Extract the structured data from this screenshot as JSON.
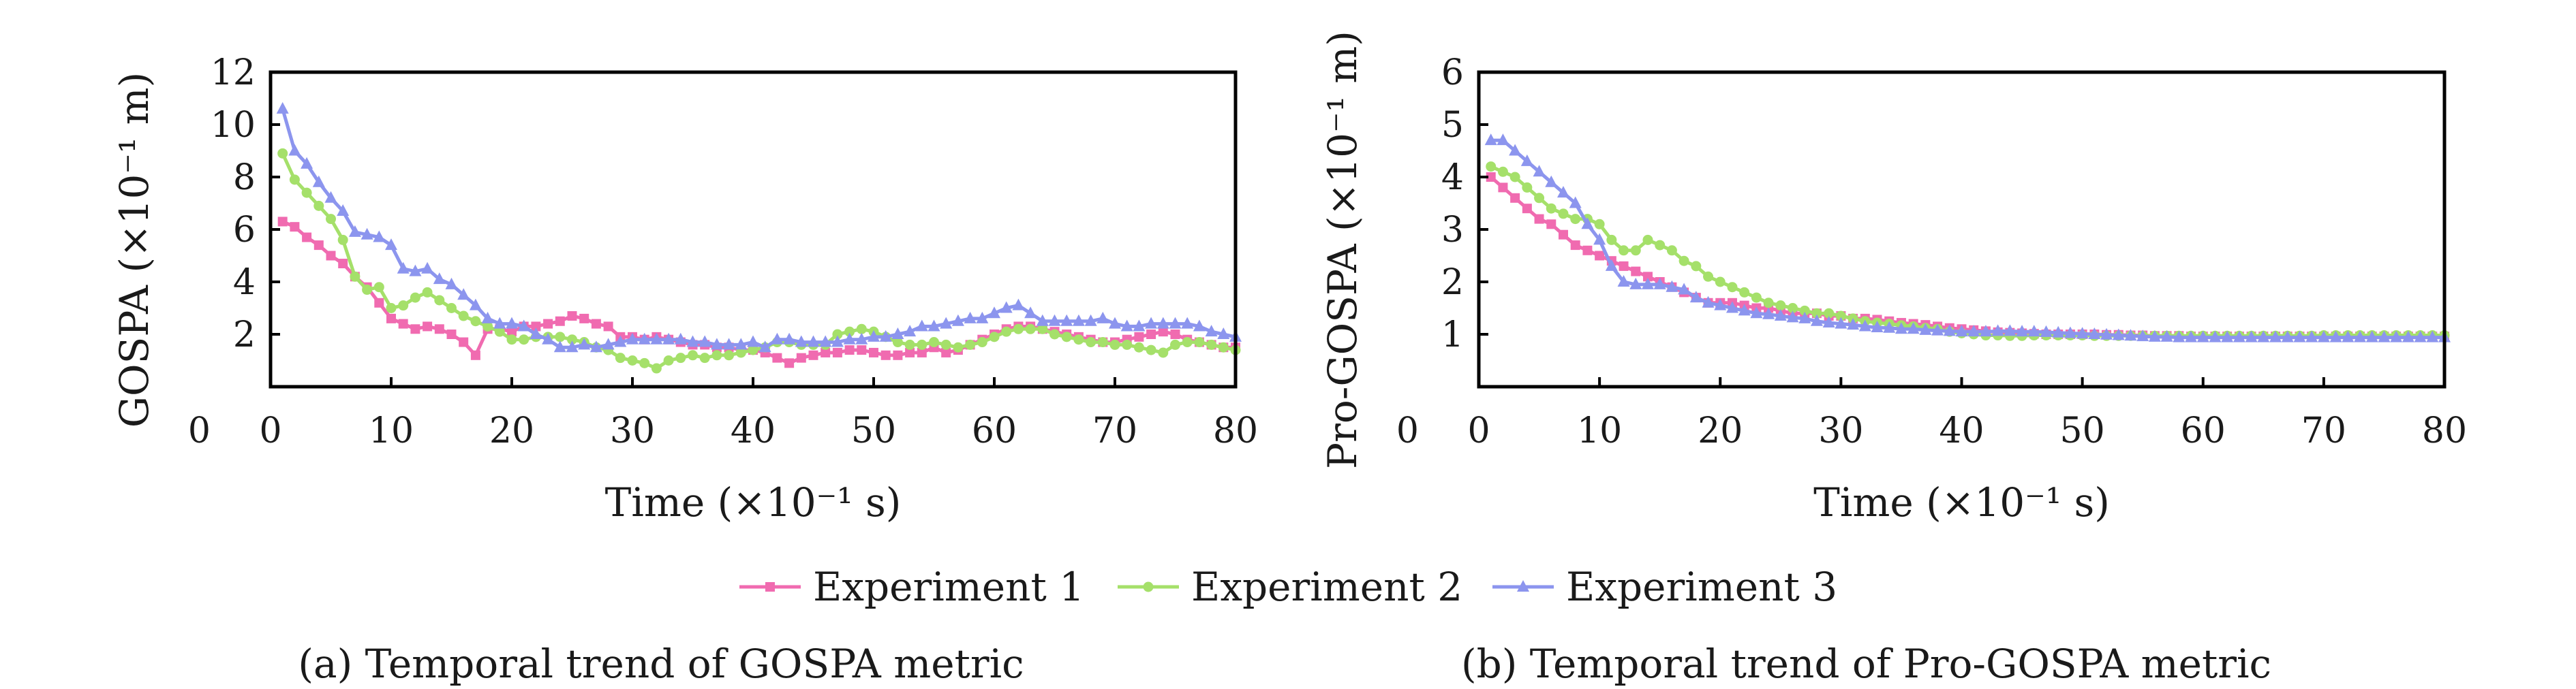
{
  "chart_data": [
    {
      "type": "line",
      "caption": "(a) Temporal trend of GOSPA metric",
      "xlabel": "Time (×10⁻¹ s)",
      "ylabel": "GOSPA (×10⁻¹ m)",
      "xlim": [
        0,
        80
      ],
      "ylim": [
        0,
        12
      ],
      "xticks": [
        0,
        10,
        20,
        30,
        40,
        50,
        60,
        70,
        80
      ],
      "yticks": [
        2,
        4,
        6,
        8,
        10,
        12
      ],
      "x": [
        1,
        2,
        3,
        4,
        5,
        6,
        7,
        8,
        9,
        10,
        11,
        12,
        13,
        14,
        15,
        16,
        17,
        18,
        19,
        20,
        21,
        22,
        23,
        24,
        25,
        26,
        27,
        28,
        29,
        30,
        31,
        32,
        33,
        34,
        35,
        36,
        37,
        38,
        39,
        40,
        41,
        42,
        43,
        44,
        45,
        46,
        47,
        48,
        49,
        50,
        51,
        52,
        53,
        54,
        55,
        56,
        57,
        58,
        59,
        60,
        61,
        62,
        63,
        64,
        65,
        66,
        67,
        68,
        69,
        70,
        71,
        72,
        73,
        74,
        75,
        76,
        77,
        78,
        79,
        80
      ],
      "series": [
        {
          "name": "Experiment 1",
          "values": [
            6.3,
            6.1,
            5.7,
            5.4,
            5.0,
            4.7,
            4.2,
            3.8,
            3.2,
            2.6,
            2.4,
            2.2,
            2.3,
            2.2,
            2.0,
            1.7,
            1.2,
            2.2,
            2.2,
            2.1,
            2.3,
            2.3,
            2.4,
            2.5,
            2.7,
            2.6,
            2.4,
            2.3,
            1.9,
            1.9,
            1.8,
            1.9,
            1.8,
            1.7,
            1.6,
            1.6,
            1.5,
            1.5,
            1.4,
            1.4,
            1.3,
            1.1,
            0.9,
            1.1,
            1.2,
            1.3,
            1.3,
            1.4,
            1.4,
            1.3,
            1.2,
            1.2,
            1.3,
            1.3,
            1.5,
            1.3,
            1.4,
            1.6,
            1.8,
            2.0,
            2.2,
            2.3,
            2.3,
            2.2,
            2.1,
            2.0,
            1.9,
            1.8,
            1.7,
            1.7,
            1.8,
            1.9,
            2.0,
            2.1,
            2.0,
            1.8,
            1.7,
            1.6,
            1.5,
            1.5
          ]
        },
        {
          "name": "Experiment 2",
          "values": [
            8.9,
            7.9,
            7.4,
            6.9,
            6.4,
            5.6,
            4.2,
            3.7,
            3.8,
            3.0,
            3.1,
            3.4,
            3.6,
            3.3,
            3.0,
            2.7,
            2.5,
            2.3,
            2.1,
            1.8,
            1.8,
            1.9,
            1.9,
            1.9,
            1.8,
            1.7,
            1.5,
            1.4,
            1.1,
            1.0,
            0.9,
            0.7,
            1.0,
            1.1,
            1.2,
            1.1,
            1.2,
            1.2,
            1.3,
            1.4,
            1.5,
            1.7,
            1.7,
            1.6,
            1.6,
            1.6,
            2.0,
            2.1,
            2.2,
            2.1,
            1.9,
            1.7,
            1.6,
            1.6,
            1.7,
            1.6,
            1.5,
            1.6,
            1.7,
            1.9,
            2.1,
            2.2,
            2.2,
            2.2,
            2.0,
            1.9,
            1.8,
            1.7,
            1.7,
            1.6,
            1.6,
            1.5,
            1.4,
            1.3,
            1.6,
            1.7,
            1.7,
            1.6,
            1.5,
            1.4
          ]
        },
        {
          "name": "Experiment 3",
          "values": [
            10.6,
            9.0,
            8.5,
            7.8,
            7.2,
            6.7,
            5.9,
            5.8,
            5.7,
            5.4,
            4.5,
            4.4,
            4.5,
            4.1,
            3.9,
            3.5,
            3.1,
            2.6,
            2.4,
            2.4,
            2.3,
            2.0,
            1.8,
            1.5,
            1.5,
            1.6,
            1.5,
            1.6,
            1.7,
            1.8,
            1.8,
            1.8,
            1.8,
            1.8,
            1.7,
            1.7,
            1.6,
            1.6,
            1.6,
            1.7,
            1.5,
            1.8,
            1.8,
            1.7,
            1.7,
            1.7,
            1.7,
            1.8,
            1.8,
            1.9,
            1.9,
            2.0,
            2.1,
            2.3,
            2.3,
            2.4,
            2.5,
            2.6,
            2.6,
            2.8,
            3.0,
            3.1,
            2.8,
            2.5,
            2.5,
            2.5,
            2.5,
            2.5,
            2.6,
            2.4,
            2.3,
            2.3,
            2.4,
            2.4,
            2.4,
            2.4,
            2.3,
            2.1,
            2.0,
            1.9
          ]
        }
      ]
    },
    {
      "type": "line",
      "caption": "(b) Temporal trend of Pro-GOSPA metric",
      "xlabel": "Time (×10⁻¹ s)",
      "ylabel": "Pro-GOSPA (×10⁻¹ m)",
      "xlim": [
        0,
        80
      ],
      "ylim": [
        0,
        6
      ],
      "xticks": [
        0,
        10,
        20,
        30,
        40,
        50,
        60,
        70,
        80
      ],
      "yticks": [
        1,
        2,
        3,
        4,
        5,
        6
      ],
      "x": [
        1,
        2,
        3,
        4,
        5,
        6,
        7,
        8,
        9,
        10,
        11,
        12,
        13,
        14,
        15,
        16,
        17,
        18,
        19,
        20,
        21,
        22,
        23,
        24,
        25,
        26,
        27,
        28,
        29,
        30,
        31,
        32,
        33,
        34,
        35,
        36,
        37,
        38,
        39,
        40,
        41,
        42,
        43,
        44,
        45,
        46,
        47,
        48,
        49,
        50,
        51,
        52,
        53,
        54,
        55,
        56,
        57,
        58,
        59,
        60,
        61,
        62,
        63,
        64,
        65,
        66,
        67,
        68,
        69,
        70,
        71,
        72,
        73,
        74,
        75,
        76,
        77,
        78,
        79,
        80
      ],
      "series": [
        {
          "name": "Experiment 1",
          "values": [
            4.0,
            3.8,
            3.6,
            3.4,
            3.2,
            3.1,
            2.9,
            2.7,
            2.6,
            2.5,
            2.4,
            2.3,
            2.2,
            2.1,
            2.0,
            1.9,
            1.8,
            1.7,
            1.6,
            1.6,
            1.6,
            1.55,
            1.5,
            1.5,
            1.45,
            1.4,
            1.4,
            1.4,
            1.35,
            1.35,
            1.3,
            1.3,
            1.28,
            1.25,
            1.22,
            1.2,
            1.18,
            1.15,
            1.12,
            1.1,
            1.08,
            1.06,
            1.04,
            1.03,
            1.02,
            1.01,
            1.0,
            1.0,
            1.0,
            1.0,
            1.0,
            0.99,
            0.99,
            0.98,
            0.98,
            0.97,
            0.97,
            0.97,
            0.96,
            0.96,
            0.96,
            0.96,
            0.96,
            0.96,
            0.96,
            0.96,
            0.96,
            0.96,
            0.96,
            0.96,
            0.96,
            0.96,
            0.96,
            0.96,
            0.96,
            0.96,
            0.96,
            0.96,
            0.96,
            0.96
          ]
        },
        {
          "name": "Experiment 2",
          "values": [
            4.2,
            4.1,
            4.0,
            3.8,
            3.6,
            3.4,
            3.3,
            3.2,
            3.2,
            3.1,
            2.8,
            2.6,
            2.6,
            2.8,
            2.7,
            2.6,
            2.4,
            2.3,
            2.1,
            2.0,
            1.9,
            1.8,
            1.7,
            1.6,
            1.55,
            1.5,
            1.45,
            1.4,
            1.4,
            1.35,
            1.3,
            1.25,
            1.22,
            1.2,
            1.17,
            1.15,
            1.12,
            1.1,
            1.05,
            1.02,
            1.0,
            0.98,
            0.98,
            0.97,
            0.97,
            0.98,
            0.98,
            0.98,
            0.98,
            0.98,
            0.97,
            0.97,
            0.97,
            0.97,
            0.97,
            0.97,
            0.97,
            0.97,
            0.97,
            0.97,
            0.97,
            0.97,
            0.97,
            0.97,
            0.97,
            0.97,
            0.97,
            0.97,
            0.97,
            0.98,
            0.98,
            0.98,
            0.98,
            0.98,
            0.98,
            0.98,
            0.98,
            0.98,
            0.98,
            0.98
          ]
        },
        {
          "name": "Experiment 3",
          "values": [
            4.7,
            4.7,
            4.5,
            4.3,
            4.1,
            3.9,
            3.7,
            3.5,
            3.1,
            2.8,
            2.3,
            2.0,
            1.95,
            1.95,
            1.95,
            1.9,
            1.85,
            1.7,
            1.6,
            1.55,
            1.5,
            1.45,
            1.4,
            1.38,
            1.35,
            1.32,
            1.3,
            1.25,
            1.22,
            1.2,
            1.18,
            1.15,
            1.13,
            1.12,
            1.1,
            1.1,
            1.08,
            1.07,
            1.06,
            1.05,
            1.05,
            1.05,
            1.06,
            1.06,
            1.05,
            1.05,
            1.04,
            1.03,
            1.02,
            1.01,
            1.0,
            0.99,
            0.98,
            0.97,
            0.96,
            0.95,
            0.95,
            0.94,
            0.94,
            0.94,
            0.94,
            0.94,
            0.94,
            0.94,
            0.94,
            0.94,
            0.94,
            0.94,
            0.94,
            0.94,
            0.94,
            0.94,
            0.94,
            0.94,
            0.94,
            0.94,
            0.94,
            0.94,
            0.94,
            0.94
          ]
        }
      ]
    }
  ],
  "legend": {
    "items": [
      {
        "label": "Experiment 1",
        "color": "#f06bb0",
        "marker": "square"
      },
      {
        "label": "Experiment 2",
        "color": "#a5e06a",
        "marker": "circle"
      },
      {
        "label": "Experiment 3",
        "color": "#8c95ee",
        "marker": "triangle"
      }
    ]
  }
}
